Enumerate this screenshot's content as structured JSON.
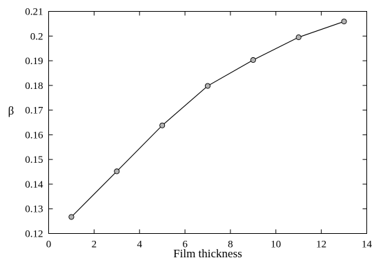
{
  "chart_data": {
    "type": "line",
    "title": "",
    "xlabel": "Film thickness",
    "ylabel": "β",
    "xlim": [
      0,
      14
    ],
    "ylim": [
      0.12,
      0.21
    ],
    "x_ticks": [
      "0",
      "2",
      "4",
      "6",
      "8",
      "10",
      "12",
      "14"
    ],
    "y_ticks": [
      "0.12",
      "0.13",
      "0.14",
      "0.15",
      "0.16",
      "0.17",
      "0.18",
      "0.19",
      "0.2",
      "0.21"
    ],
    "grid": false,
    "series": [
      {
        "x": [
          1,
          3,
          5,
          7,
          9,
          11,
          13
        ],
        "values": [
          0.1267,
          0.1452,
          0.1638,
          0.1798,
          0.1903,
          0.1995,
          0.2059
        ],
        "marker": "circle",
        "marker_color": "#b3b3b3",
        "line_color": "#000000"
      }
    ]
  }
}
